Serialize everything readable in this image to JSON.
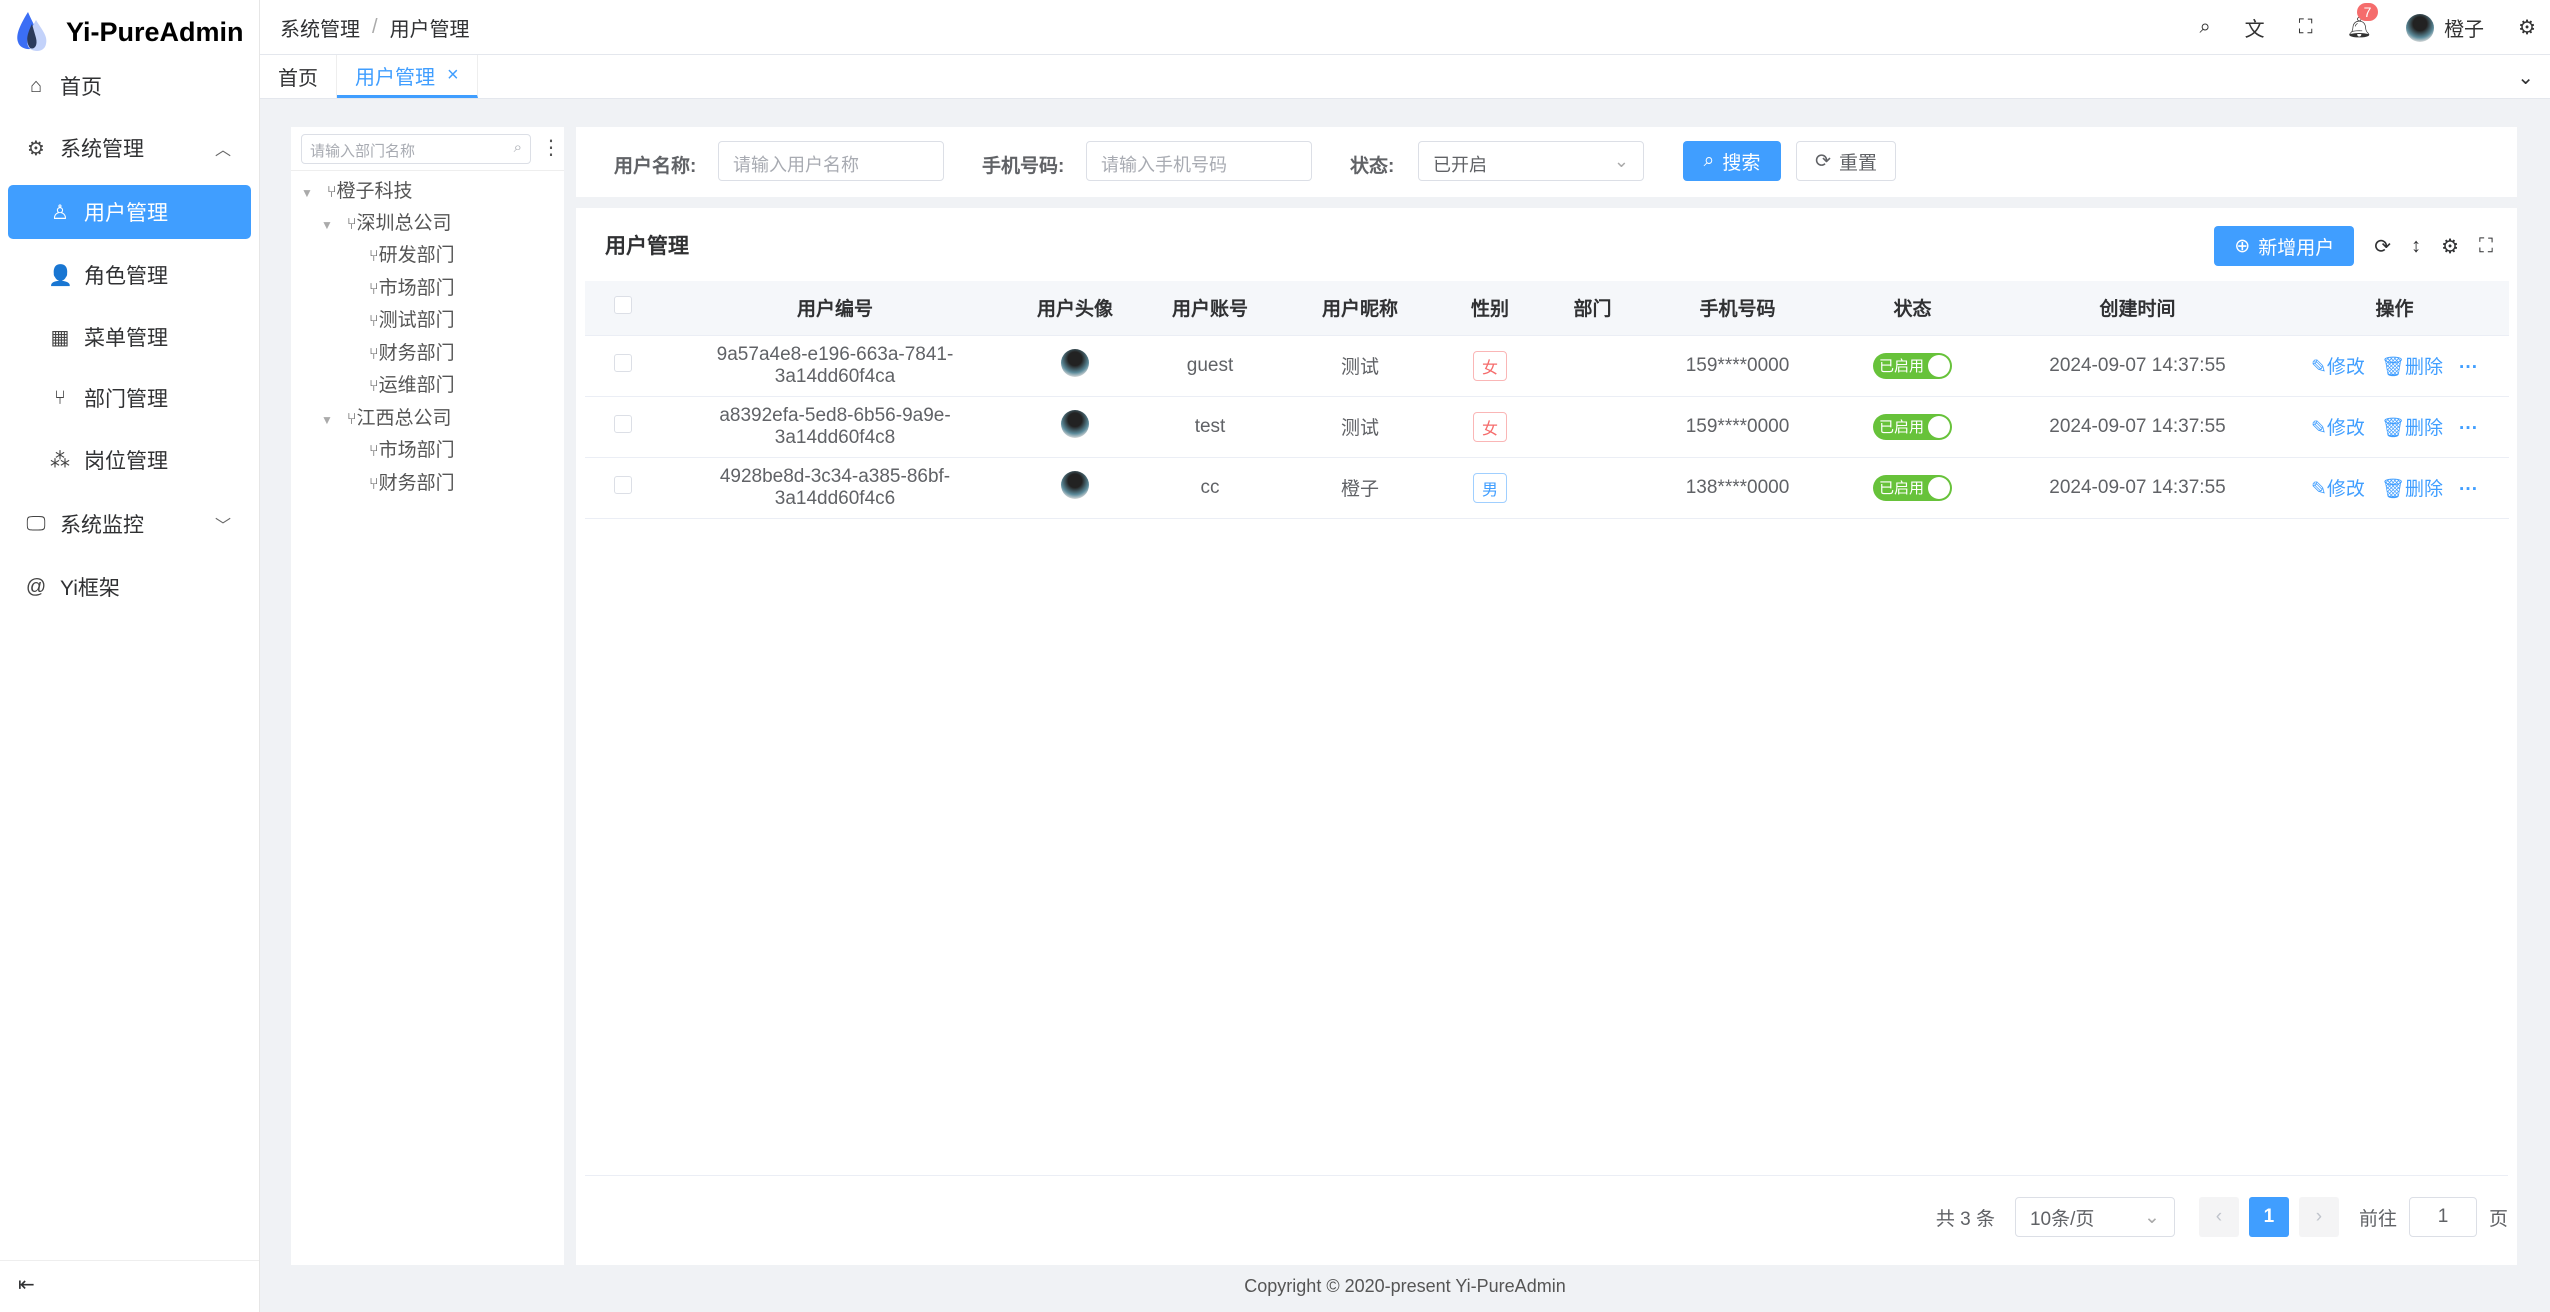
{
  "app": {
    "title": "Yi-PureAdmin",
    "footer": "Copyright © 2020-present Yi-PureAdmin"
  },
  "sidebar": {
    "items": [
      {
        "label": "首页",
        "icon": "home-icon"
      },
      {
        "label": "系统管理",
        "icon": "gear-icon",
        "expanded": true
      },
      {
        "label": "用户管理",
        "icon": "user-icon",
        "active": true
      },
      {
        "label": "角色管理",
        "icon": "role-icon"
      },
      {
        "label": "菜单管理",
        "icon": "grid-icon"
      },
      {
        "label": "部门管理",
        "icon": "branch-icon"
      },
      {
        "label": "岗位管理",
        "icon": "post-icon"
      },
      {
        "label": "系统监控",
        "icon": "monitor-icon"
      },
      {
        "label": "Yi框架",
        "icon": "at-icon"
      }
    ]
  },
  "header": {
    "breadcrumb": [
      "系统管理",
      "用户管理"
    ],
    "notifications": "7",
    "username": "橙子"
  },
  "tabs": [
    {
      "label": "首页"
    },
    {
      "label": "用户管理",
      "active": true
    }
  ],
  "tree": {
    "placeholder": "请输入部门名称",
    "nodes": [
      "橙子科技",
      "深圳总公司",
      "研发部门",
      "市场部门",
      "测试部门",
      "财务部门",
      "运维部门",
      "江西总公司",
      "市场部门",
      "财务部门"
    ]
  },
  "search": {
    "username_label": "用户名称:",
    "username_placeholder": "请输入用户名称",
    "phone_label": "手机号码:",
    "phone_placeholder": "请输入手机号码",
    "status_label": "状态:",
    "status_value": "已开启",
    "search_btn": "搜索",
    "reset_btn": "重置"
  },
  "panel": {
    "title": "用户管理",
    "add_btn": "新增用户"
  },
  "table": {
    "columns": [
      "用户编号",
      "用户头像",
      "用户账号",
      "用户昵称",
      "性别",
      "部门",
      "手机号码",
      "状态",
      "创建时间",
      "操作"
    ],
    "rows": [
      {
        "id": "9a57a4e8-e196-663a-7841-3a14dd60f4ca",
        "account": "guest",
        "nickname": "测试",
        "gender": "女",
        "dept": "",
        "phone": "159****0000",
        "status": "已启用",
        "created": "2024-09-07 14:37:55"
      },
      {
        "id": "a8392efa-5ed8-6b56-9a9e-3a14dd60f4c8",
        "account": "test",
        "nickname": "测试",
        "gender": "女",
        "dept": "",
        "phone": "159****0000",
        "status": "已启用",
        "created": "2024-09-07 14:37:55"
      },
      {
        "id": "4928be8d-3c34-a385-86bf-3a14dd60f4c6",
        "account": "cc",
        "nickname": "橙子",
        "gender": "男",
        "dept": "",
        "phone": "138****0000",
        "status": "已启用",
        "created": "2024-09-07 14:37:55"
      }
    ],
    "edit": "修改",
    "delete": "删除"
  },
  "pagination": {
    "total": "共 3 条",
    "page_size": "10条/页",
    "current": "1",
    "goto": "前往",
    "goto_value": "1",
    "page_suffix": "页"
  },
  "colors": {
    "primary": "#409eff",
    "success": "#67c23a",
    "danger": "#f56c6c"
  }
}
